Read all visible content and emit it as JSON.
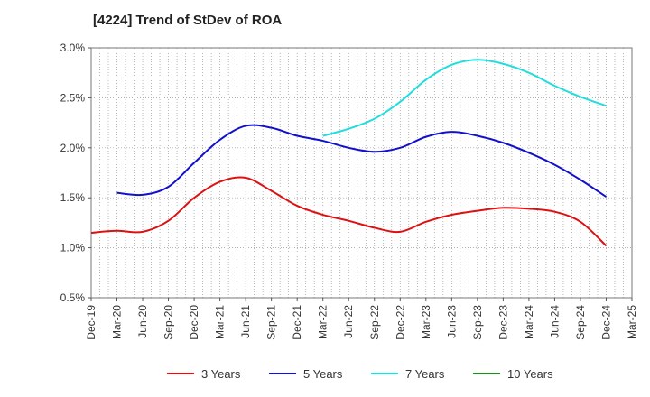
{
  "chart_data": {
    "type": "line",
    "title": "[4224]  Trend of StDev of ROA",
    "xlabel": "",
    "ylabel": "",
    "ylim": [
      0.5,
      3.0
    ],
    "y_ticks": [
      "0.5%",
      "1.0%",
      "1.5%",
      "2.0%",
      "2.5%",
      "3.0%"
    ],
    "y_tick_values": [
      0.5,
      1.0,
      1.5,
      2.0,
      2.5,
      3.0
    ],
    "x_ticks": [
      "Dec-19",
      "Mar-20",
      "Jun-20",
      "Sep-20",
      "Dec-20",
      "Mar-21",
      "Jun-21",
      "Sep-21",
      "Dec-21",
      "Mar-22",
      "Jun-22",
      "Sep-22",
      "Dec-22",
      "Mar-23",
      "Jun-23",
      "Sep-23",
      "Dec-23",
      "Mar-24",
      "Jun-24",
      "Sep-24",
      "Dec-24",
      "Mar-25"
    ],
    "grid": true,
    "legend_position": "bottom",
    "series": [
      {
        "name": "3 Years",
        "color": "#dd1111",
        "values": [
          1.15,
          1.17,
          1.16,
          1.27,
          1.5,
          1.66,
          1.7,
          1.57,
          1.42,
          1.33,
          1.27,
          1.2,
          1.16,
          1.26,
          1.33,
          1.37,
          1.4,
          1.39,
          1.36,
          1.26,
          1.02,
          null
        ]
      },
      {
        "name": "5 Years",
        "color": "#1111cc",
        "values": [
          null,
          1.55,
          1.53,
          1.61,
          1.85,
          2.08,
          2.22,
          2.2,
          2.12,
          2.07,
          2.0,
          1.96,
          2.0,
          2.11,
          2.16,
          2.12,
          2.05,
          1.95,
          1.83,
          1.68,
          1.51,
          null
        ]
      },
      {
        "name": "7 Years",
        "color": "#22dddd",
        "values": [
          null,
          null,
          null,
          null,
          null,
          null,
          null,
          null,
          null,
          2.12,
          2.19,
          2.29,
          2.46,
          2.68,
          2.83,
          2.88,
          2.84,
          2.75,
          2.62,
          2.51,
          2.42,
          null
        ]
      },
      {
        "name": "10 Years",
        "color": "#228822",
        "values": [
          null,
          null,
          null,
          null,
          null,
          null,
          null,
          null,
          null,
          null,
          null,
          null,
          null,
          null,
          null,
          null,
          null,
          null,
          null,
          null,
          null,
          null
        ]
      }
    ]
  }
}
